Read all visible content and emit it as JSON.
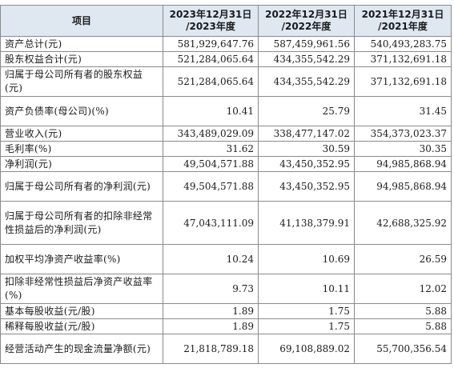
{
  "table": {
    "header": [
      {
        "lines": [
          "项目"
        ]
      },
      {
        "lines": [
          "2023年12月31日",
          "/2023年度"
        ]
      },
      {
        "lines": [
          "2022年12月31日",
          "/2022年度"
        ]
      },
      {
        "lines": [
          "2021年12月31日",
          "/2021年度"
        ]
      }
    ],
    "rows": [
      {
        "label": "资产总计(元)",
        "values": [
          "581,929,647.76",
          "587,459,961.56",
          "540,493,283.75"
        ]
      },
      {
        "label": "股东权益合计(元)",
        "values": [
          "521,284,065.64",
          "434,355,542.29",
          "371,132,691.18"
        ]
      },
      {
        "label": "归属于母公司所有者的股东权益(元)",
        "values": [
          "521,284,065.64",
          "434,355,542.29",
          "371,132,691.18"
        ]
      },
      {
        "label": "资产负债率(母公司)(%)",
        "values": [
          "10.41",
          "25.79",
          "31.45"
        ]
      },
      {
        "label": "营业收入(元)",
        "values": [
          "343,489,029.09",
          "338,477,147.02",
          "354,373,023.37"
        ]
      },
      {
        "label": "毛利率(%)",
        "values": [
          "31.62",
          "30.59",
          "30.35"
        ]
      },
      {
        "label": "净利润(元)",
        "values": [
          "49,504,571.88",
          "43,450,352.95",
          "94,985,868.94"
        ]
      },
      {
        "label": "归属于母公司所有者的净利润(元)",
        "values": [
          "49,504,571.88",
          "43,450,352.95",
          "94,985,868.94"
        ]
      },
      {
        "label": "归属于母公司所有者的扣除非经常性损益后的净利润(元)",
        "values": [
          "47,043,111.09",
          "41,138,379.91",
          "42,688,325.92"
        ]
      },
      {
        "label": "加权平均净资产收益率(%)",
        "values": [
          "10.24",
          "10.69",
          "26.59"
        ]
      },
      {
        "label": "扣除非经常性损益后净资产收益率(%)",
        "values": [
          "9.73",
          "10.11",
          "12.02"
        ]
      },
      {
        "label": "基本每股收益(元/股)",
        "values": [
          "1.89",
          "1.75",
          "5.88"
        ]
      },
      {
        "label": "稀释每股收益(元/股)",
        "values": [
          "1.89",
          "1.75",
          "5.88"
        ]
      },
      {
        "label": "经营活动产生的现金流量净额(元)",
        "values": [
          "21,818,789.18",
          "69,108,889.02",
          "55,700,356.54"
        ]
      }
    ]
  }
}
